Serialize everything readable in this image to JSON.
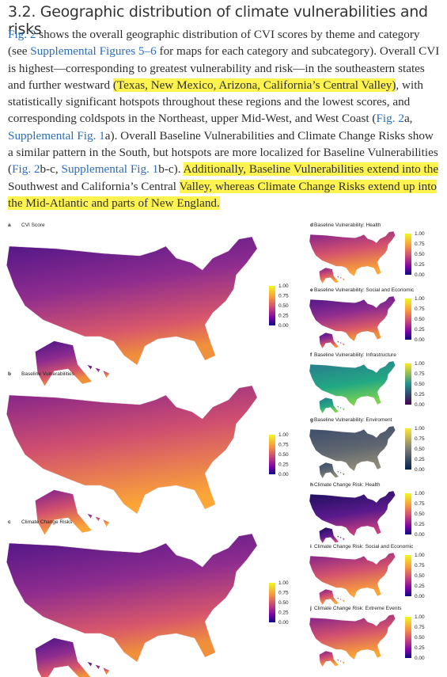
{
  "heading": {
    "title": "3.2. Geographic distribution of climate vulnerabilities and risks"
  },
  "paragraph": {
    "segments": [
      {
        "text": "Fig. 2",
        "style": "link"
      },
      {
        "text": " shows the overall geographic distribution of CVI scores by theme and category (see ",
        "style": "plain"
      },
      {
        "text": "Supplemental Figures 5–6",
        "style": "link"
      },
      {
        "text": " for maps for each category and subcategory). Overall CVI is highest—corresponding to greatest vulnerability and risk—in the southeastern states and further westward ",
        "style": "plain"
      },
      {
        "text": "(Texas, New Mexico, Arizona, California’s Central Valley)",
        "style": "highlight"
      },
      {
        "text": ", with statistically significant hotspots throughout these regions and the lowest scores, and corresponding coldspots in the Northeast, upper Mid-West, and West Coast (",
        "style": "plain"
      },
      {
        "text": "Fig. 2",
        "style": "link"
      },
      {
        "text": "a, ",
        "style": "plain"
      },
      {
        "text": "Supplemental Fig. 1",
        "style": "link"
      },
      {
        "text": "a). Overall Baseline Vulnerabilities and Climate Change Risks show a similar pattern in the South, but hotspots are more localized for Baseline Vulnerabilities (",
        "style": "plain"
      },
      {
        "text": "Fig. 2",
        "style": "link"
      },
      {
        "text": "b-c, ",
        "style": "plain"
      },
      {
        "text": "Supplemental Fig. 1",
        "style": "link"
      },
      {
        "text": "b-c). ",
        "style": "plain"
      },
      {
        "text": "Additionally, Baseline Vulnerabilities extend into the ",
        "style": "highlight"
      },
      {
        "text": "Southwest and California’s Central ",
        "style": "plain"
      },
      {
        "text": "Valley, whereas Climate Change Risks extend up into the Mid-Atlantic and parts of New England.",
        "style": "highlight"
      }
    ]
  },
  "figure": {
    "colorbar_ticks": [
      "1.00",
      "0.75",
      "0.50",
      "0.25",
      "0.00"
    ],
    "panels": [
      {
        "letter": "a",
        "title": "CVI Score"
      },
      {
        "letter": "b",
        "title": "Baseline Vulnerabilities"
      },
      {
        "letter": "c",
        "title": "Climate Change Risks"
      },
      {
        "letter": "d",
        "title": "Baseline Vulnerability: Health"
      },
      {
        "letter": "e",
        "title": "Baseline Vulnerability: Social and Economic"
      },
      {
        "letter": "f",
        "title": "Baseline Vulnerability: Infrastructure"
      },
      {
        "letter": "g",
        "title": "Baseline Vulnerability: Enviroment"
      },
      {
        "letter": "h",
        "title": "Climate Change Risk: Health"
      },
      {
        "letter": "i",
        "title": "Climate Change Risk: Social and Economic"
      },
      {
        "letter": "j",
        "title": "Climate Change Risk: Extreme Events"
      }
    ]
  }
}
